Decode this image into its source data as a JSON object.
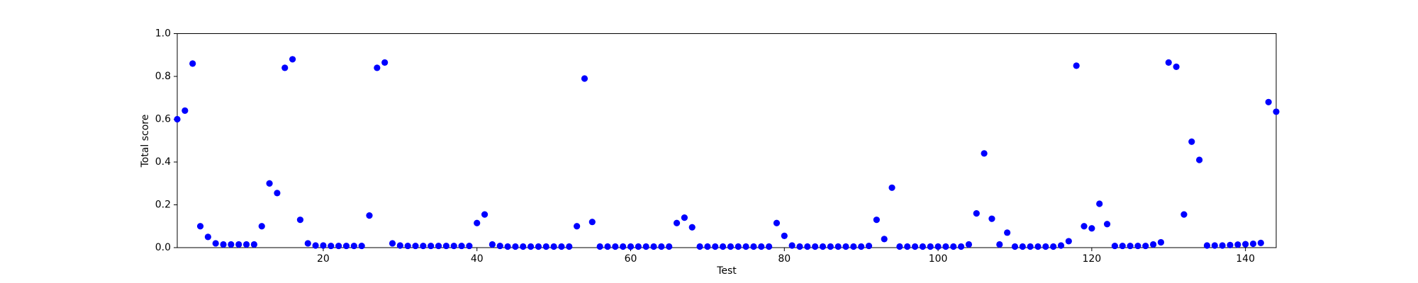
{
  "chart_data": {
    "type": "scatter",
    "xlabel": "Test",
    "ylabel": "Total score",
    "x": [
      1,
      2,
      3,
      4,
      5,
      6,
      7,
      8,
      9,
      10,
      11,
      12,
      13,
      14,
      15,
      16,
      17,
      18,
      19,
      20,
      21,
      22,
      23,
      24,
      25,
      26,
      27,
      28,
      29,
      30,
      31,
      32,
      33,
      34,
      35,
      36,
      37,
      38,
      39,
      40,
      41,
      42,
      43,
      44,
      45,
      46,
      47,
      48,
      49,
      50,
      51,
      52,
      53,
      54,
      55,
      56,
      57,
      58,
      59,
      60,
      61,
      62,
      63,
      64,
      65,
      66,
      67,
      68,
      69,
      70,
      71,
      72,
      73,
      74,
      75,
      76,
      77,
      78,
      79,
      80,
      81,
      82,
      83,
      84,
      85,
      86,
      87,
      88,
      89,
      90,
      91,
      92,
      93,
      94,
      95,
      96,
      97,
      98,
      99,
      100,
      101,
      102,
      103,
      104,
      105,
      106,
      107,
      108,
      109,
      110,
      111,
      112,
      113,
      114,
      115,
      116,
      117,
      118,
      119,
      120,
      121,
      122,
      123,
      124,
      125,
      126,
      127,
      128,
      129,
      130,
      131,
      132,
      133,
      134,
      135,
      136,
      137,
      138,
      139,
      140,
      141,
      142,
      143,
      144
    ],
    "series": [
      {
        "color": "#0000ff",
        "values": [
          0.6,
          0.64,
          0.86,
          0.1,
          0.05,
          0.02,
          0.015,
          0.015,
          0.015,
          0.015,
          0.015,
          0.1,
          0.3,
          0.255,
          0.84,
          0.88,
          0.13,
          0.02,
          0.01,
          0.01,
          0.008,
          0.008,
          0.008,
          0.008,
          0.008,
          0.15,
          0.84,
          0.865,
          0.02,
          0.01,
          0.008,
          0.008,
          0.008,
          0.008,
          0.008,
          0.008,
          0.008,
          0.008,
          0.008,
          0.115,
          0.155,
          0.015,
          0.008,
          0.005,
          0.005,
          0.005,
          0.005,
          0.005,
          0.005,
          0.005,
          0.005,
          0.005,
          0.1,
          0.79,
          0.12,
          0.005,
          0.005,
          0.005,
          0.005,
          0.005,
          0.005,
          0.005,
          0.005,
          0.005,
          0.005,
          0.115,
          0.14,
          0.095,
          0.005,
          0.005,
          0.005,
          0.005,
          0.005,
          0.005,
          0.005,
          0.005,
          0.005,
          0.005,
          0.115,
          0.055,
          0.01,
          0.005,
          0.005,
          0.005,
          0.005,
          0.005,
          0.005,
          0.005,
          0.005,
          0.005,
          0.008,
          0.13,
          0.04,
          0.28,
          0.005,
          0.005,
          0.005,
          0.005,
          0.005,
          0.005,
          0.005,
          0.005,
          0.005,
          0.015,
          0.16,
          0.44,
          0.135,
          0.015,
          0.07,
          0.005,
          0.005,
          0.005,
          0.005,
          0.005,
          0.005,
          0.01,
          0.03,
          0.85,
          0.1,
          0.09,
          0.205,
          0.11,
          0.008,
          0.008,
          0.008,
          0.008,
          0.008,
          0.015,
          0.025,
          0.865,
          0.845,
          0.155,
          0.495,
          0.41,
          0.01,
          0.01,
          0.01,
          0.012,
          0.014,
          0.016,
          0.018,
          0.022,
          0.68,
          0.635
        ]
      }
    ],
    "xlim": [
      1,
      144
    ],
    "xticks": [
      20,
      40,
      60,
      80,
      100,
      120,
      140
    ],
    "ylim": [
      0,
      1
    ],
    "yticks": [
      {
        "value": 0,
        "label": "0.0"
      },
      {
        "value": 0.2,
        "label": "0.2"
      },
      {
        "value": 0.4,
        "label": "0.4"
      },
      {
        "value": 0.6,
        "label": "0.6"
      },
      {
        "value": 0.8,
        "label": "0.8"
      },
      {
        "value": 1,
        "label": "1.0"
      }
    ],
    "grid": false
  }
}
